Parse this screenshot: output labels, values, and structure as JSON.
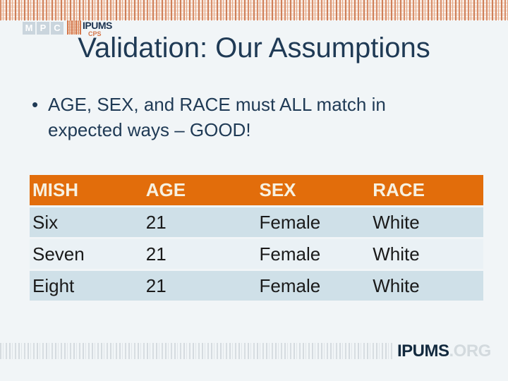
{
  "logo": {
    "mpc": [
      "M",
      "P",
      "C"
    ],
    "brand": "IPUMS",
    "sub": "CPS"
  },
  "slide": {
    "title": "Validation: Our Assumptions",
    "bullet_marker": "•",
    "bullet_line1": "AGE, SEX, and RACE must ALL match in",
    "bullet_line2": "expected ways – GOOD!"
  },
  "table": {
    "headers": [
      "MISH",
      "AGE",
      "SEX",
      "RACE"
    ],
    "rows": [
      {
        "mish": "Six",
        "age": "21",
        "sex": "Female",
        "race": "White"
      },
      {
        "mish": "Seven",
        "age": "21",
        "sex": "Female",
        "race": "White"
      },
      {
        "mish": "Eight",
        "age": "21",
        "sex": "Female",
        "race": "White"
      }
    ]
  },
  "footer": {
    "brand": "IPUMS",
    "suffix": ".ORG"
  },
  "colors": {
    "header_orange": "#e26d0b",
    "row_dark": "#cfe0e8",
    "row_light": "#eaf1f5",
    "title_navy": "#1f3a55",
    "footer_navy": "#12293e",
    "pattern_salmon": "#d98f6b"
  }
}
